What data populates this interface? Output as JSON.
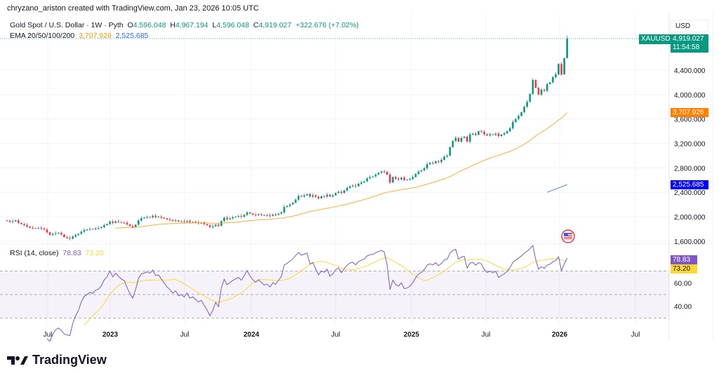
{
  "credit": "chryzano_ariston created with TradingView.com, Jan 23, 2026 10:05 UTC",
  "legend": {
    "symbol": "Gold Spot / U.S. Dollar · 1W · Pyth",
    "o_label": "O",
    "o": "4,596.048",
    "h_label": "H",
    "h": "4,967.194",
    "l_label": "L",
    "l": "4,596.048",
    "c_label": "C",
    "c": "4,919.027",
    "change": "+322.676 (+7.02%)",
    "ema_label": "EMA 20/50/100/200",
    "ema_values": [
      "3,707.926",
      "2,525.685"
    ]
  },
  "price_axis": {
    "currency": "USD",
    "ticks": [
      "4,400.000",
      "4,000.000",
      "3,600.000",
      "3,200.000",
      "2,800.000",
      "2,400.000",
      "2,000.000",
      "1,600.000"
    ],
    "symbol_tag": "XAUUSD",
    "last_price": "4,919.027",
    "countdown": "11:54:58",
    "ema_tags": [
      "3,707.926",
      "2,525.685"
    ]
  },
  "rsi": {
    "label": "RSI (14, close)",
    "value": "78.83",
    "ma_value": "73.20",
    "ticks": [
      "60.00",
      "40.00"
    ]
  },
  "time_axis": [
    "Jul",
    "2023",
    "Jul",
    "2024",
    "Jul",
    "2025",
    "Jul",
    "2026",
    "Jul"
  ],
  "colors": {
    "up": "#089981",
    "down": "#f23645",
    "ema_orange": "#ff9800",
    "ema_blue": "#2962ff",
    "rsi": "#7e57c2",
    "rsi_ma": "#fdd835"
  },
  "icons": {
    "event": "us-flag-icon",
    "logo": "tradingview-logo-icon"
  },
  "footer": {
    "brand": "TradingView"
  },
  "chart_data": {
    "type": "candlestick",
    "interval": "1W",
    "ylim": [
      1600,
      4919.027
    ],
    "last": {
      "open": 4596.048,
      "high": 4967.194,
      "low": 4596.048,
      "close": 4919.027
    },
    "closes": [
      1932,
      1915,
      1925,
      1940,
      1900,
      1880,
      1862,
      1840,
      1822,
      1810,
      1812,
      1815,
      1808,
      1790,
      1745,
      1700,
      1718,
      1730,
      1735,
      1710,
      1665,
      1652,
      1640,
      1675,
      1700,
      1720,
      1755,
      1780,
      1790,
      1800,
      1795,
      1810,
      1815,
      1830,
      1862,
      1880,
      1920,
      1900,
      1925,
      1915,
      1905,
      1900,
      1875,
      1850,
      1830,
      1870,
      1940,
      1975,
      1985,
      1995,
      1990,
      2015,
      1995,
      2000,
      1985,
      1970,
      1955,
      1945,
      1930,
      1940,
      1920,
      1925,
      1915,
      1930,
      1910,
      1915,
      1905,
      1895,
      1900,
      1880,
      1860,
      1830,
      1845,
      1870,
      1850,
      1930,
      1985,
      1960,
      1975,
      1990,
      2000,
      2010,
      2000,
      2030,
      2070,
      2050,
      2035,
      2025,
      2040,
      2030,
      2020,
      2025,
      2015,
      2035,
      2030,
      2050,
      2070,
      2160,
      2175,
      2200,
      2230,
      2280,
      2340,
      2330,
      2350,
      2370,
      2330,
      2350,
      2325,
      2300,
      2335,
      2330,
      2360,
      2330,
      2350,
      2390,
      2410,
      2390,
      2430,
      2470,
      2500,
      2510,
      2500,
      2540,
      2560,
      2580,
      2630,
      2650,
      2660,
      2690,
      2720,
      2740,
      2735,
      2690,
      2560,
      2650,
      2620,
      2610,
      2640,
      2600,
      2605,
      2620,
      2650,
      2700,
      2740,
      2760,
      2795,
      2860,
      2880,
      2875,
      2910,
      2895,
      2930,
      2985,
      3000,
      3140,
      3240,
      3290,
      3230,
      3290,
      3310,
      3230,
      3345,
      3360,
      3340,
      3400,
      3390,
      3350,
      3330,
      3350,
      3340,
      3360,
      3320,
      3345,
      3365,
      3400,
      3450,
      3550,
      3600,
      3650,
      3710,
      3800,
      3880,
      4010,
      4240,
      4110,
      4000,
      4080,
      4060,
      4170,
      4200,
      4285,
      4330,
      4500,
      4330,
      4596,
      4919.027
    ]
  }
}
